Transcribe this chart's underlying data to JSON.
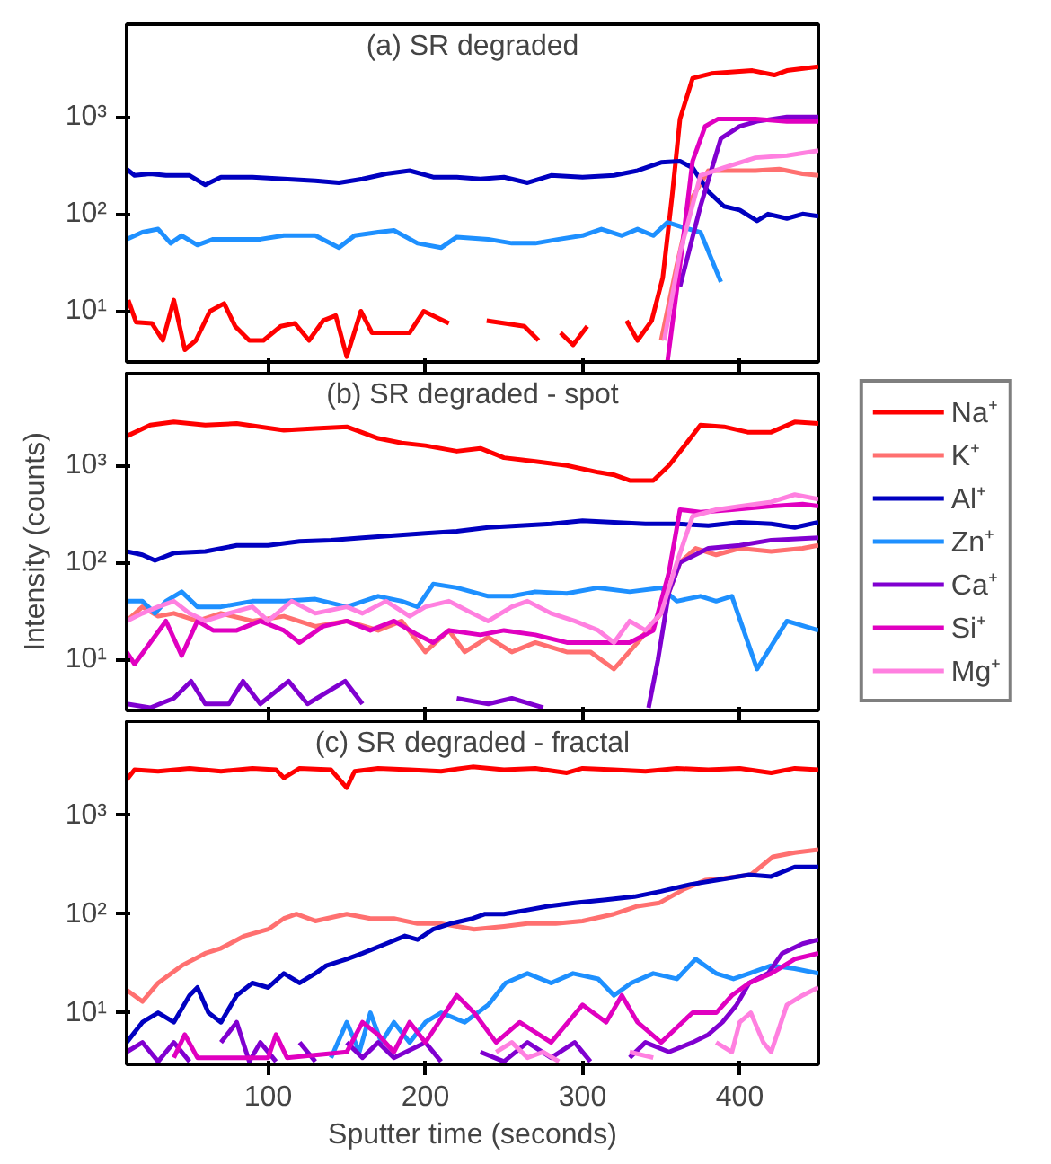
{
  "chart_data": [
    {
      "type": "line",
      "title": "(a) SR degraded",
      "log": true,
      "xlim": [
        10,
        450
      ],
      "ylim": [
        3,
        9000
      ],
      "xticks": [
        100,
        200,
        300,
        400
      ],
      "yticks": [
        {
          "value": 10,
          "label": "10¹"
        },
        {
          "value": 100,
          "label": "10²"
        },
        {
          "value": 1000,
          "label": "10³"
        }
      ],
      "tick_labels": "y",
      "legend": false,
      "series": [
        {
          "color": "#ff0000",
          "x": [
            11,
            16,
            26,
            33,
            40,
            47,
            54,
            63,
            72,
            79,
            88,
            97,
            108,
            117,
            126,
            135,
            143,
            150,
            159,
            166,
            190,
            199,
            215,
            223,
            239,
            263,
            272,
            279,
            286,
            294,
            303,
            312,
            328,
            335,
            344,
            351,
            357,
            362,
            370,
            382,
            408,
            422,
            430,
            450
          ],
          "values": [
            13,
            7.7,
            7.5,
            5,
            13,
            4,
            5,
            10,
            12,
            7,
            5,
            5,
            7,
            7.5,
            5,
            8,
            9,
            3.4,
            10,
            6,
            6,
            10,
            7.5,
            null,
            8,
            7,
            5,
            null,
            6,
            4.5,
            7,
            null,
            8,
            5,
            8,
            22,
            155,
            950,
            2500,
            2800,
            3000,
            2700,
            3000,
            3300
          ]
        },
        {
          "color": "#ff7070",
          "x": [
            350,
            360,
            370,
            380,
            395,
            410,
            425,
            440,
            450
          ],
          "values": [
            5,
            30,
            150,
            280,
            280,
            280,
            290,
            260,
            250
          ]
        },
        {
          "color": "#0000c0",
          "x": [
            10,
            15,
            25,
            35,
            50,
            60,
            70,
            90,
            110,
            130,
            145,
            160,
            175,
            190,
            205,
            220,
            235,
            250,
            265,
            280,
            300,
            320,
            335,
            350,
            362,
            370,
            380,
            390,
            400,
            411,
            418,
            430,
            440,
            450
          ],
          "values": [
            290,
            250,
            260,
            250,
            250,
            200,
            240,
            240,
            230,
            220,
            210,
            230,
            260,
            280,
            240,
            240,
            230,
            240,
            210,
            250,
            240,
            250,
            280,
            340,
            350,
            300,
            170,
            120,
            110,
            85,
            100,
            90,
            100,
            95
          ]
        },
        {
          "color": "#1e90ff",
          "x": [
            10,
            20,
            30,
            38,
            45,
            55,
            65,
            80,
            95,
            110,
            130,
            145,
            155,
            170,
            180,
            195,
            210,
            220,
            240,
            255,
            270,
            285,
            300,
            312,
            325,
            335,
            345,
            354,
            365,
            375,
            388
          ],
          "values": [
            55,
            65,
            70,
            50,
            60,
            48,
            55,
            55,
            55,
            60,
            60,
            45,
            60,
            65,
            68,
            50,
            45,
            58,
            55,
            50,
            50,
            55,
            60,
            70,
            60,
            70,
            60,
            82,
            72,
            65,
            20
          ]
        },
        {
          "color": "#8000d0",
          "x": [
            362,
            375,
            388,
            400,
            411,
            430,
            450
          ],
          "values": [
            18,
            120,
            600,
            800,
            900,
            1000,
            1000
          ]
        },
        {
          "color": "#e000c0",
          "x": [
            354,
            362,
            370,
            378,
            386,
            410,
            430,
            450
          ],
          "values": [
            3,
            30,
            350,
            800,
            950,
            950,
            900,
            900
          ]
        },
        {
          "color": "#ff80e0",
          "x": [
            352,
            362,
            375,
            390,
            410,
            430,
            450
          ],
          "values": [
            5,
            40,
            250,
            300,
            380,
            400,
            450
          ]
        }
      ]
    },
    {
      "type": "line",
      "title": "(b) SR degraded - spot",
      "ylabel": "Intensity (counts)",
      "log": true,
      "xlim": [
        10,
        450
      ],
      "ylim": [
        3,
        9000
      ],
      "xticks": [
        100,
        200,
        300,
        400
      ],
      "yticks": [
        {
          "value": 10,
          "label": "10¹"
        },
        {
          "value": 100,
          "label": "10²"
        },
        {
          "value": 1000,
          "label": "10³"
        }
      ],
      "tick_labels": "y",
      "legend": "right",
      "series": [
        {
          "name": "Na⁺",
          "color": "#ff0000",
          "x": [
            10,
            25,
            40,
            60,
            80,
            95,
            110,
            130,
            150,
            170,
            185,
            200,
            220,
            235,
            250,
            270,
            290,
            310,
            320,
            330,
            345,
            355,
            365,
            375,
            390,
            405,
            420,
            435,
            450
          ],
          "values": [
            2000,
            2600,
            2800,
            2600,
            2700,
            2500,
            2300,
            2400,
            2500,
            1900,
            1700,
            1600,
            1400,
            1500,
            1200,
            1100,
            1000,
            850,
            800,
            700,
            700,
            1000,
            1600,
            2600,
            2500,
            2200,
            2200,
            2800,
            2700
          ]
        },
        {
          "name": "K⁺",
          "color": "#ff7070",
          "x": [
            10,
            20,
            30,
            40,
            55,
            70,
            90,
            110,
            130,
            150,
            170,
            185,
            200,
            215,
            225,
            240,
            255,
            270,
            290,
            305,
            320,
            335,
            350,
            362,
            372,
            385,
            400,
            420,
            440,
            450
          ],
          "values": [
            25,
            35,
            28,
            30,
            25,
            30,
            25,
            28,
            22,
            25,
            20,
            25,
            12,
            20,
            12,
            17,
            12,
            15,
            12,
            12,
            8,
            15,
            30,
            100,
            140,
            120,
            140,
            130,
            140,
            150
          ]
        },
        {
          "name": "Al⁺",
          "color": "#0000c0",
          "x": [
            10,
            20,
            28,
            40,
            60,
            80,
            100,
            120,
            140,
            160,
            180,
            200,
            220,
            240,
            260,
            280,
            300,
            320,
            340,
            360,
            380,
            400,
            420,
            435,
            450
          ],
          "values": [
            130,
            120,
            105,
            125,
            130,
            150,
            150,
            165,
            170,
            180,
            190,
            200,
            210,
            230,
            240,
            250,
            270,
            260,
            250,
            250,
            240,
            260,
            250,
            230,
            260
          ]
        },
        {
          "name": "Zn⁺",
          "color": "#1e90ff",
          "x": [
            10,
            20,
            28,
            35,
            45,
            55,
            70,
            90,
            110,
            130,
            150,
            170,
            185,
            195,
            205,
            220,
            240,
            255,
            270,
            290,
            310,
            330,
            350,
            360,
            375,
            385,
            395,
            411,
            430,
            450
          ],
          "values": [
            40,
            40,
            30,
            40,
            50,
            35,
            35,
            40,
            40,
            42,
            35,
            45,
            40,
            35,
            60,
            55,
            45,
            45,
            50,
            48,
            55,
            50,
            55,
            40,
            45,
            40,
            45,
            8,
            25,
            20
          ]
        },
        {
          "name": "Ca⁺",
          "color": "#8000d0",
          "x": [
            10,
            25,
            40,
            51,
            60,
            75,
            84,
            95,
            113,
            125,
            149,
            160,
            175,
            220,
            240,
            255,
            275,
            290,
            342,
            348,
            355,
            362,
            380,
            400,
            420,
            450
          ],
          "values": [
            3.5,
            3.2,
            4,
            6,
            3.5,
            3.5,
            6,
            3.5,
            6,
            3.5,
            6,
            3.5,
            null,
            4,
            3.5,
            4,
            3.2,
            null,
            3.2,
            10,
            50,
            100,
            140,
            150,
            170,
            180
          ]
        },
        {
          "name": "Si⁺",
          "color": "#e000c0",
          "x": [
            10,
            15,
            25,
            35,
            45,
            55,
            65,
            80,
            95,
            110,
            120,
            135,
            150,
            165,
            180,
            195,
            205,
            215,
            235,
            250,
            270,
            290,
            310,
            330,
            345,
            355,
            362,
            375,
            395,
            420,
            440,
            450
          ],
          "values": [
            12,
            9,
            15,
            25,
            11,
            25,
            20,
            20,
            25,
            20,
            15,
            22,
            25,
            20,
            25,
            18,
            15,
            20,
            18,
            20,
            18,
            15,
            15,
            15,
            20,
            80,
            350,
            330,
            350,
            380,
            400,
            380
          ]
        },
        {
          "name": "Mg⁺",
          "color": "#ff80e0",
          "x": [
            10,
            20,
            30,
            40,
            50,
            60,
            75,
            90,
            100,
            115,
            130,
            150,
            160,
            175,
            190,
            200,
            215,
            230,
            240,
            255,
            265,
            280,
            295,
            310,
            320,
            330,
            340,
            350,
            360,
            370,
            385,
            400,
            420,
            435,
            450
          ],
          "values": [
            25,
            30,
            35,
            40,
            30,
            25,
            30,
            35,
            25,
            40,
            30,
            35,
            30,
            40,
            28,
            35,
            40,
            30,
            25,
            35,
            40,
            30,
            25,
            20,
            15,
            25,
            20,
            30,
            100,
            300,
            350,
            380,
            420,
            500,
            450
          ]
        }
      ]
    },
    {
      "type": "line",
      "title": "(c) SR degraded - fractal",
      "xlabel": "Sputter time (seconds)",
      "log": true,
      "xlim": [
        10,
        450
      ],
      "ylim": [
        3,
        9000
      ],
      "xticks": [
        100,
        200,
        300,
        400
      ],
      "yticks": [
        {
          "value": 10,
          "label": "10¹"
        },
        {
          "value": 100,
          "label": "10²"
        },
        {
          "value": 1000,
          "label": "10³"
        }
      ],
      "legend": false,
      "series": [
        {
          "color": "#ff0000",
          "x": [
            10,
            15,
            30,
            50,
            70,
            90,
            105,
            110,
            120,
            140,
            150,
            155,
            170,
            190,
            210,
            230,
            250,
            270,
            290,
            300,
            320,
            340,
            360,
            380,
            400,
            420,
            435,
            450
          ],
          "values": [
            2300,
            2900,
            2800,
            3000,
            2800,
            3000,
            2900,
            2400,
            3000,
            2900,
            1900,
            2800,
            3000,
            2900,
            2800,
            3100,
            2900,
            3000,
            2700,
            3000,
            2900,
            2800,
            3000,
            2900,
            3000,
            2700,
            3000,
            2900
          ]
        },
        {
          "color": "#ff7070",
          "x": [
            10,
            20,
            30,
            45,
            60,
            70,
            85,
            100,
            110,
            118,
            130,
            150,
            165,
            180,
            195,
            210,
            231,
            250,
            265,
            283,
            300,
            320,
            335,
            349,
            365,
            378,
            390,
            407,
            421,
            435,
            450
          ],
          "values": [
            17,
            13,
            20,
            30,
            40,
            45,
            60,
            70,
            90,
            100,
            85,
            100,
            90,
            90,
            80,
            80,
            70,
            75,
            80,
            80,
            85,
            100,
            120,
            130,
            180,
            220,
            230,
            250,
            380,
            420,
            450
          ]
        },
        {
          "color": "#0000c0",
          "x": [
            10,
            20,
            30,
            40,
            50,
            55,
            62,
            70,
            80,
            90,
            100,
            110,
            120,
            130,
            137,
            150,
            160,
            175,
            187,
            195,
            205,
            216,
            230,
            238,
            250,
            265,
            278,
            295,
            315,
            333,
            350,
            369,
            385,
            406,
            420,
            435,
            450
          ],
          "values": [
            5,
            8,
            10,
            8,
            15,
            18,
            10,
            8,
            15,
            20,
            18,
            25,
            20,
            25,
            30,
            35,
            40,
            50,
            60,
            55,
            70,
            80,
            90,
            100,
            100,
            110,
            120,
            130,
            140,
            150,
            170,
            200,
            220,
            250,
            240,
            300,
            300
          ]
        },
        {
          "color": "#1e90ff",
          "x": [
            140,
            150,
            158,
            165,
            172,
            180,
            190,
            200,
            210,
            225,
            240,
            251,
            265,
            280,
            294,
            310,
            320,
            331,
            345,
            360,
            372,
            385,
            396,
            406,
            420,
            435,
            450
          ],
          "values": [
            3.5,
            8,
            4,
            10,
            5,
            8,
            5,
            8,
            10,
            8,
            12,
            20,
            25,
            20,
            25,
            22,
            15,
            20,
            25,
            22,
            35,
            25,
            22,
            25,
            30,
            28,
            25
          ]
        },
        {
          "color": "#8000d0",
          "x": [
            10,
            20,
            30,
            40,
            50,
            60,
            70,
            80,
            88,
            95,
            105,
            110,
            120,
            130,
            140,
            150,
            160,
            170,
            180,
            200,
            210,
            220,
            235,
            250,
            265,
            280,
            295,
            305,
            315,
            330,
            340,
            355,
            370,
            380,
            389,
            398,
            406,
            418,
            427,
            440,
            450
          ],
          "values": [
            4,
            5,
            3.2,
            5,
            3.2,
            null,
            5,
            8,
            3.2,
            5,
            3.2,
            null,
            5,
            3.2,
            null,
            5,
            3.5,
            5,
            3.5,
            5,
            3.2,
            null,
            4,
            3.2,
            5,
            3.5,
            5,
            3.2,
            null,
            3.5,
            5,
            4,
            5,
            6,
            8,
            12,
            20,
            25,
            40,
            50,
            55
          ]
        },
        {
          "color": "#e000c0",
          "x": [
            40,
            47,
            55,
            100,
            105,
            112,
            150,
            160,
            170,
            180,
            190,
            200,
            220,
            231,
            245,
            260,
            280,
            300,
            315,
            325,
            335,
            350,
            370,
            385,
            395,
            406,
            420,
            435,
            450
          ],
          "values": [
            3.5,
            6,
            3.5,
            3.5,
            6,
            3.5,
            4,
            8,
            6,
            4,
            8,
            5,
            15,
            10,
            5,
            8,
            5,
            12,
            8,
            15,
            8,
            5,
            10,
            10,
            15,
            20,
            25,
            35,
            40
          ]
        },
        {
          "color": "#ff80e0",
          "x": [
            245,
            255,
            265,
            275,
            285,
            300,
            330,
            345,
            360,
            385,
            395,
            400,
            407,
            415,
            420,
            430,
            440,
            450
          ],
          "values": [
            4,
            5,
            3.5,
            4,
            3.2,
            null,
            4,
            3.5,
            null,
            5,
            4,
            8,
            10,
            5,
            4,
            12,
            15,
            18
          ]
        }
      ]
    }
  ]
}
